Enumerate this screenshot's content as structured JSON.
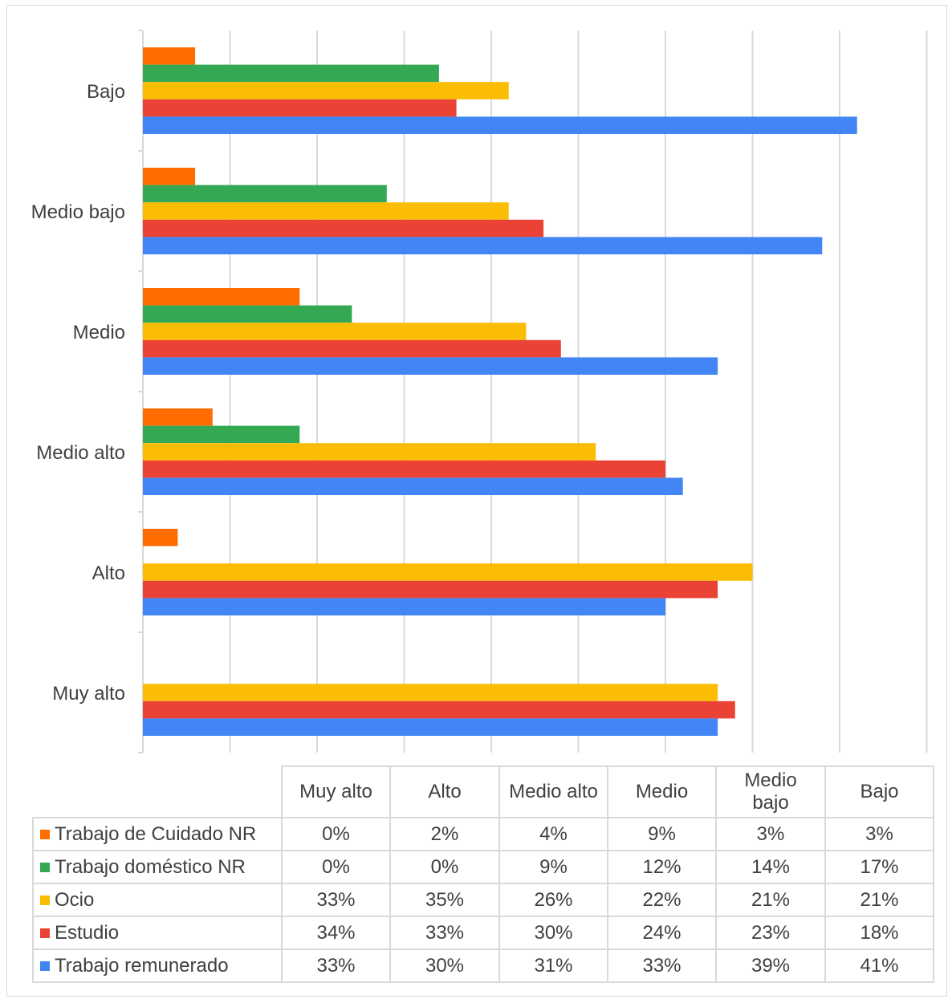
{
  "chart_data": {
    "type": "bar",
    "orientation": "horizontal",
    "grid": true,
    "xlim": [
      0,
      45
    ],
    "categories": [
      "Muy alto",
      "Alto",
      "Medio alto",
      "Medio",
      "Medio bajo",
      "Bajo"
    ],
    "category_labels_display": [
      "Muy alto",
      "Alto",
      "Medio alto",
      "Medio",
      "Medio\nbajo",
      "Bajo"
    ],
    "series": [
      {
        "name": "Trabajo de Cuidado NR",
        "color": "#ff6d01",
        "values": [
          0,
          2,
          4,
          9,
          3,
          3
        ],
        "labels": [
          "0%",
          "2%",
          "4%",
          "9%",
          "3%",
          "3%"
        ]
      },
      {
        "name": "Trabajo doméstico NR",
        "color": "#34a853",
        "values": [
          0,
          0,
          9,
          12,
          14,
          17
        ],
        "labels": [
          "0%",
          "0%",
          "9%",
          "12%",
          "14%",
          "17%"
        ]
      },
      {
        "name": "Ocio",
        "color": "#fbbc04",
        "values": [
          33,
          35,
          26,
          22,
          21,
          21
        ],
        "labels": [
          "33%",
          "35%",
          "26%",
          "22%",
          "21%",
          "21%"
        ]
      },
      {
        "name": "Estudio",
        "color": "#ea4335",
        "values": [
          34,
          33,
          30,
          24,
          23,
          18
        ],
        "labels": [
          "34%",
          "33%",
          "30%",
          "24%",
          "23%",
          "18%"
        ]
      },
      {
        "name": "Trabajo remunerado",
        "color": "#4285f4",
        "values": [
          33,
          30,
          31,
          33,
          39,
          41
        ],
        "labels": [
          "33%",
          "30%",
          "31%",
          "33%",
          "39%",
          "41%"
        ]
      }
    ],
    "data_table": true
  }
}
